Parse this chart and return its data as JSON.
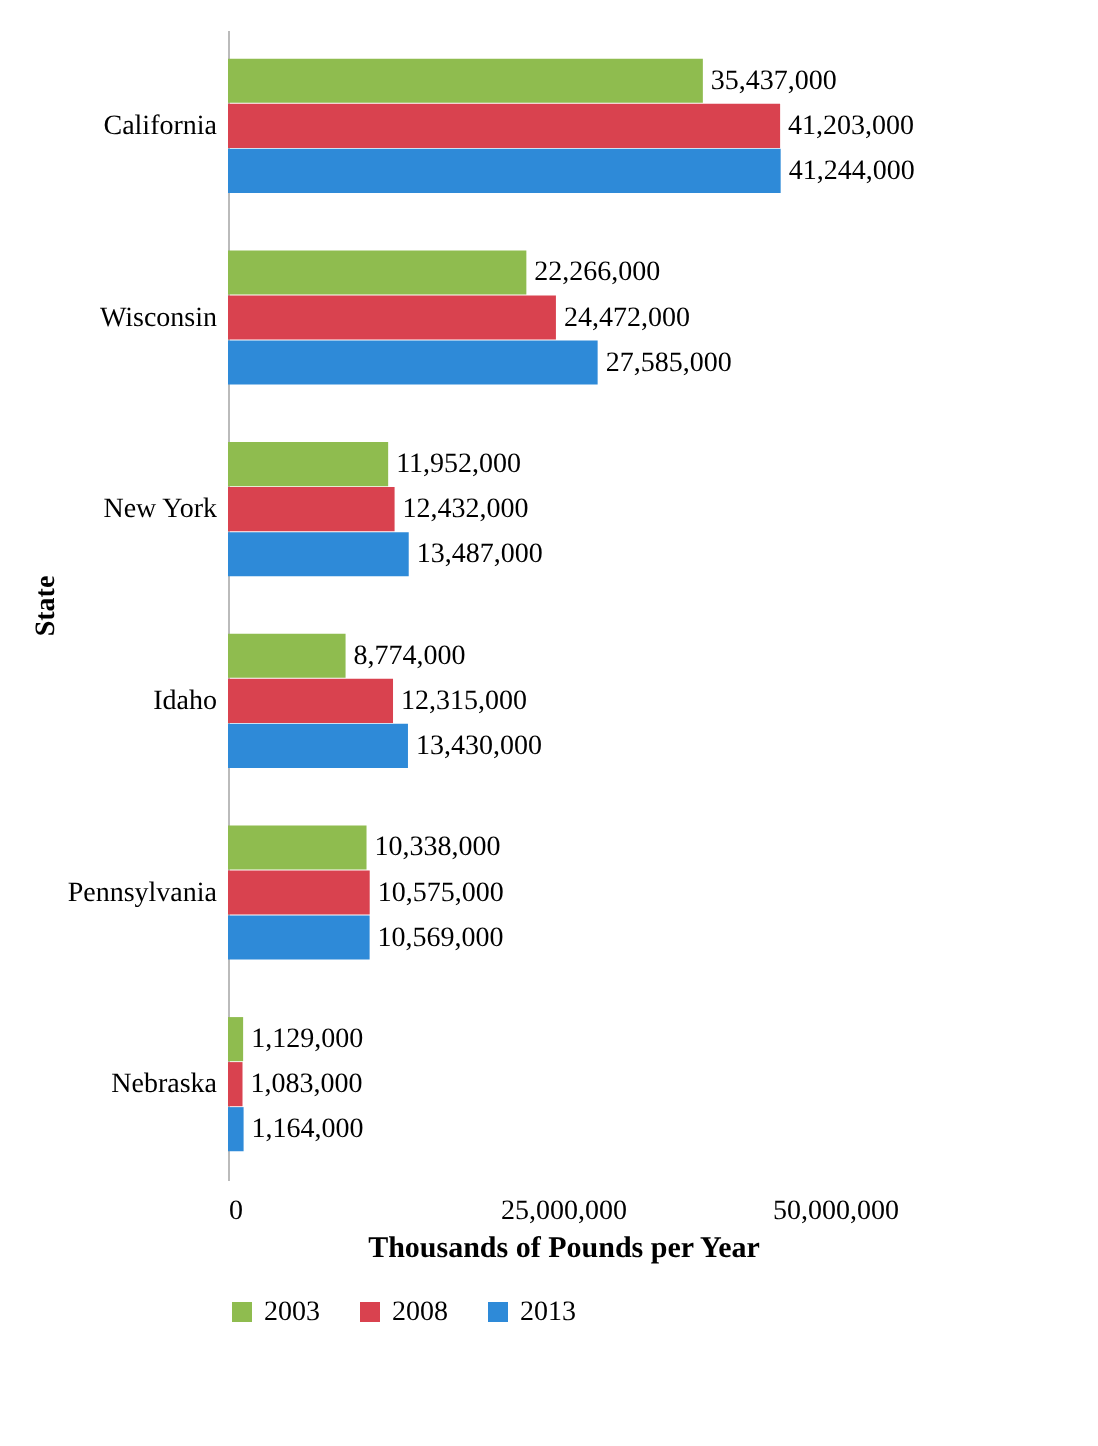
{
  "chart_data": {
    "type": "bar",
    "orientation": "horizontal",
    "categories": [
      "California",
      "Wisconsin",
      "New York",
      "Idaho",
      "Pennsylvania",
      "Nebraska"
    ],
    "series": [
      {
        "name": "2003",
        "color": "#8fbc4f",
        "values": [
          35437000,
          22266000,
          11952000,
          8774000,
          10338000,
          1129000
        ],
        "value_labels": [
          "35,437,000",
          "22,266,000",
          "11,952,000",
          "8,774,000",
          "10,338,000",
          "1,129,000"
        ]
      },
      {
        "name": "2008",
        "color": "#d9424f",
        "values": [
          41203000,
          24472000,
          12432000,
          12315000,
          10575000,
          1083000
        ],
        "value_labels": [
          "41,203,000",
          "24,472,000",
          "12,432,000",
          "12,315,000",
          "10,575,000",
          "1,083,000"
        ]
      },
      {
        "name": "2013",
        "color": "#2e8ad8",
        "values": [
          41244000,
          27585000,
          13487000,
          13430000,
          10569000,
          1164000
        ],
        "value_labels": [
          "41,244,000",
          "27,585,000",
          "13,487,000",
          "13,430,000",
          "10,569,000",
          "1,164,000"
        ]
      }
    ],
    "xlim": [
      0,
      50000000
    ],
    "xticks": [
      0,
      {
        "value": 25000000,
        "label": "25,000,000"
      },
      {
        "value": 50000000,
        "label": "50,000,000"
      }
    ],
    "xlabel": "Thousands of Pounds per Year",
    "ylabel": "State",
    "legend": "bottom"
  }
}
